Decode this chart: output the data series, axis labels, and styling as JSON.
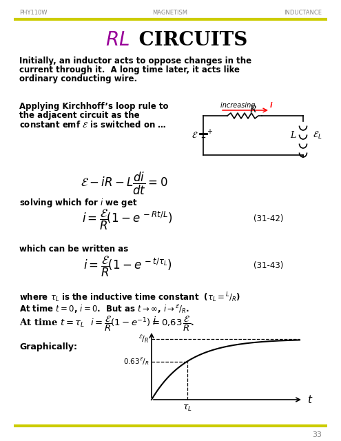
{
  "header_left": "PHY110W",
  "header_center": "MAGNETISM",
  "header_right": "INDUCTANCE",
  "title_color": "#990099",
  "line_color": "#cccc00",
  "page_number": "33",
  "bg_color": "#ffffff",
  "text_color": "#000000"
}
